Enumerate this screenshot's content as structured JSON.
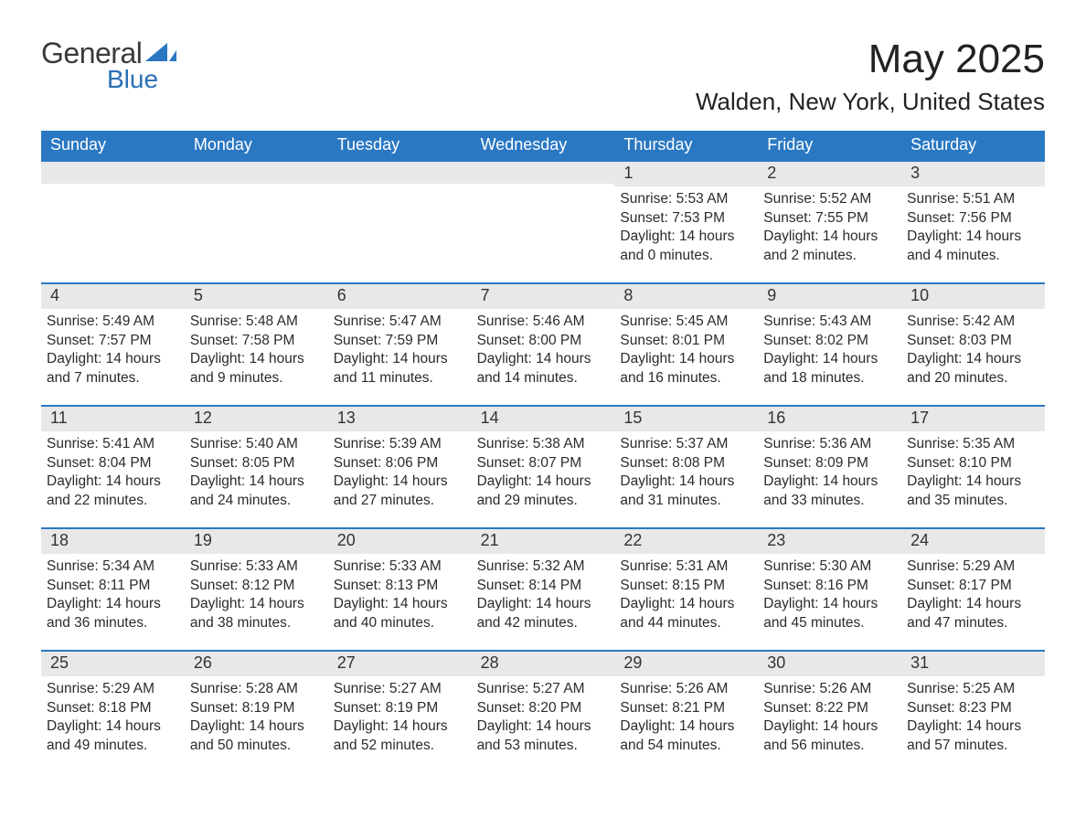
{
  "brand": {
    "name_part1": "General",
    "name_part2": "Blue",
    "text_color": "#3a3a3a",
    "accent_color": "#2a6fb5"
  },
  "header": {
    "month_title": "May 2025",
    "location": "Walden, New York, United States"
  },
  "colors": {
    "header_bar_bg": "#2a78c2",
    "header_bar_text": "#ffffff",
    "daynum_bar_bg": "#e8e8e8",
    "week_border": "#2a78c2",
    "body_text": "#2b2b2b",
    "background": "#ffffff"
  },
  "typography": {
    "month_title_fontsize": 44,
    "location_fontsize": 26,
    "dow_fontsize": 18,
    "daynum_fontsize": 18,
    "body_fontsize": 15.5
  },
  "layout": {
    "columns": 7,
    "rows": 5,
    "cell_min_height": 134
  },
  "days_of_week": [
    "Sunday",
    "Monday",
    "Tuesday",
    "Wednesday",
    "Thursday",
    "Friday",
    "Saturday"
  ],
  "weeks": [
    [
      {
        "empty": true
      },
      {
        "empty": true
      },
      {
        "empty": true
      },
      {
        "empty": true
      },
      {
        "day": "1",
        "sunrise": "Sunrise: 5:53 AM",
        "sunset": "Sunset: 7:53 PM",
        "daylight": "Daylight: 14 hours and 0 minutes."
      },
      {
        "day": "2",
        "sunrise": "Sunrise: 5:52 AM",
        "sunset": "Sunset: 7:55 PM",
        "daylight": "Daylight: 14 hours and 2 minutes."
      },
      {
        "day": "3",
        "sunrise": "Sunrise: 5:51 AM",
        "sunset": "Sunset: 7:56 PM",
        "daylight": "Daylight: 14 hours and 4 minutes."
      }
    ],
    [
      {
        "day": "4",
        "sunrise": "Sunrise: 5:49 AM",
        "sunset": "Sunset: 7:57 PM",
        "daylight": "Daylight: 14 hours and 7 minutes."
      },
      {
        "day": "5",
        "sunrise": "Sunrise: 5:48 AM",
        "sunset": "Sunset: 7:58 PM",
        "daylight": "Daylight: 14 hours and 9 minutes."
      },
      {
        "day": "6",
        "sunrise": "Sunrise: 5:47 AM",
        "sunset": "Sunset: 7:59 PM",
        "daylight": "Daylight: 14 hours and 11 minutes."
      },
      {
        "day": "7",
        "sunrise": "Sunrise: 5:46 AM",
        "sunset": "Sunset: 8:00 PM",
        "daylight": "Daylight: 14 hours and 14 minutes."
      },
      {
        "day": "8",
        "sunrise": "Sunrise: 5:45 AM",
        "sunset": "Sunset: 8:01 PM",
        "daylight": "Daylight: 14 hours and 16 minutes."
      },
      {
        "day": "9",
        "sunrise": "Sunrise: 5:43 AM",
        "sunset": "Sunset: 8:02 PM",
        "daylight": "Daylight: 14 hours and 18 minutes."
      },
      {
        "day": "10",
        "sunrise": "Sunrise: 5:42 AM",
        "sunset": "Sunset: 8:03 PM",
        "daylight": "Daylight: 14 hours and 20 minutes."
      }
    ],
    [
      {
        "day": "11",
        "sunrise": "Sunrise: 5:41 AM",
        "sunset": "Sunset: 8:04 PM",
        "daylight": "Daylight: 14 hours and 22 minutes."
      },
      {
        "day": "12",
        "sunrise": "Sunrise: 5:40 AM",
        "sunset": "Sunset: 8:05 PM",
        "daylight": "Daylight: 14 hours and 24 minutes."
      },
      {
        "day": "13",
        "sunrise": "Sunrise: 5:39 AM",
        "sunset": "Sunset: 8:06 PM",
        "daylight": "Daylight: 14 hours and 27 minutes."
      },
      {
        "day": "14",
        "sunrise": "Sunrise: 5:38 AM",
        "sunset": "Sunset: 8:07 PM",
        "daylight": "Daylight: 14 hours and 29 minutes."
      },
      {
        "day": "15",
        "sunrise": "Sunrise: 5:37 AM",
        "sunset": "Sunset: 8:08 PM",
        "daylight": "Daylight: 14 hours and 31 minutes."
      },
      {
        "day": "16",
        "sunrise": "Sunrise: 5:36 AM",
        "sunset": "Sunset: 8:09 PM",
        "daylight": "Daylight: 14 hours and 33 minutes."
      },
      {
        "day": "17",
        "sunrise": "Sunrise: 5:35 AM",
        "sunset": "Sunset: 8:10 PM",
        "daylight": "Daylight: 14 hours and 35 minutes."
      }
    ],
    [
      {
        "day": "18",
        "sunrise": "Sunrise: 5:34 AM",
        "sunset": "Sunset: 8:11 PM",
        "daylight": "Daylight: 14 hours and 36 minutes."
      },
      {
        "day": "19",
        "sunrise": "Sunrise: 5:33 AM",
        "sunset": "Sunset: 8:12 PM",
        "daylight": "Daylight: 14 hours and 38 minutes."
      },
      {
        "day": "20",
        "sunrise": "Sunrise: 5:33 AM",
        "sunset": "Sunset: 8:13 PM",
        "daylight": "Daylight: 14 hours and 40 minutes."
      },
      {
        "day": "21",
        "sunrise": "Sunrise: 5:32 AM",
        "sunset": "Sunset: 8:14 PM",
        "daylight": "Daylight: 14 hours and 42 minutes."
      },
      {
        "day": "22",
        "sunrise": "Sunrise: 5:31 AM",
        "sunset": "Sunset: 8:15 PM",
        "daylight": "Daylight: 14 hours and 44 minutes."
      },
      {
        "day": "23",
        "sunrise": "Sunrise: 5:30 AM",
        "sunset": "Sunset: 8:16 PM",
        "daylight": "Daylight: 14 hours and 45 minutes."
      },
      {
        "day": "24",
        "sunrise": "Sunrise: 5:29 AM",
        "sunset": "Sunset: 8:17 PM",
        "daylight": "Daylight: 14 hours and 47 minutes."
      }
    ],
    [
      {
        "day": "25",
        "sunrise": "Sunrise: 5:29 AM",
        "sunset": "Sunset: 8:18 PM",
        "daylight": "Daylight: 14 hours and 49 minutes."
      },
      {
        "day": "26",
        "sunrise": "Sunrise: 5:28 AM",
        "sunset": "Sunset: 8:19 PM",
        "daylight": "Daylight: 14 hours and 50 minutes."
      },
      {
        "day": "27",
        "sunrise": "Sunrise: 5:27 AM",
        "sunset": "Sunset: 8:19 PM",
        "daylight": "Daylight: 14 hours and 52 minutes."
      },
      {
        "day": "28",
        "sunrise": "Sunrise: 5:27 AM",
        "sunset": "Sunset: 8:20 PM",
        "daylight": "Daylight: 14 hours and 53 minutes."
      },
      {
        "day": "29",
        "sunrise": "Sunrise: 5:26 AM",
        "sunset": "Sunset: 8:21 PM",
        "daylight": "Daylight: 14 hours and 54 minutes."
      },
      {
        "day": "30",
        "sunrise": "Sunrise: 5:26 AM",
        "sunset": "Sunset: 8:22 PM",
        "daylight": "Daylight: 14 hours and 56 minutes."
      },
      {
        "day": "31",
        "sunrise": "Sunrise: 5:25 AM",
        "sunset": "Sunset: 8:23 PM",
        "daylight": "Daylight: 14 hours and 57 minutes."
      }
    ]
  ]
}
